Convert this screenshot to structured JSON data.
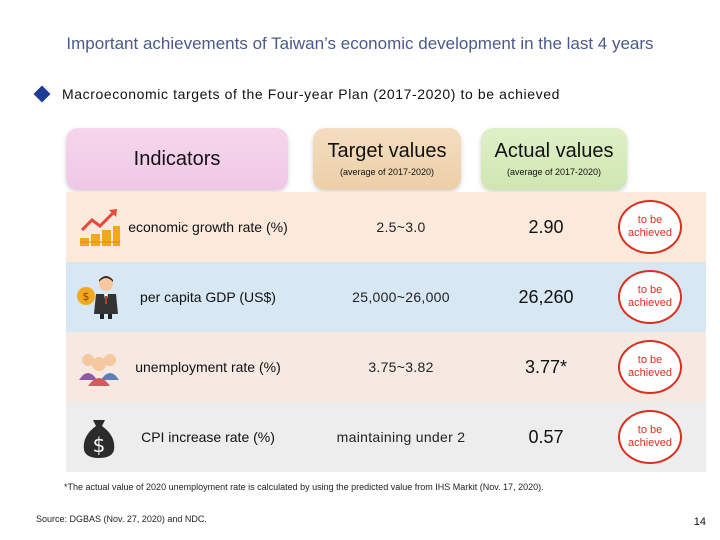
{
  "title": "Important achievements of Taiwan’s economic development in the last 4 years",
  "subtitle": "Macroeconomic targets of the Four-year Plan (2017-2020) to be achieved",
  "headers": {
    "indicators": "Indicators",
    "target": "Target values",
    "target_sub": "(average of 2017-2020)",
    "actual": "Actual values",
    "actual_sub": "(average of 2017-2020)"
  },
  "rows": [
    {
      "indicator": "economic growth rate (%)",
      "target": "2.5~3.0",
      "actual": "2.90",
      "status": "to be achieved",
      "icon": "growth-chart-coins-icon"
    },
    {
      "indicator": "per capita GDP (US$)",
      "target": "25,000~26,000",
      "actual": "26,260",
      "status": "to be achieved",
      "icon": "businessman-coin-icon"
    },
    {
      "indicator": "unemployment rate (%)",
      "target": "3.75~3.82",
      "actual": "3.77*",
      "status": "to be achieved",
      "icon": "people-group-icon"
    },
    {
      "indicator": "CPI increase rate (%)",
      "target": "maintaining under 2",
      "actual": "0.57",
      "status": "to be achieved",
      "icon": "money-bag-icon"
    }
  ],
  "footnote": "*The actual value of 2020 unemployment rate is calculated by using the predicted value from IHS Markit (Nov. 17, 2020).",
  "source": "Source: DGBAS (Nov. 27, 2020) and NDC.",
  "page_number": "14",
  "colors": {
    "title": "#4a5a8a",
    "badge_red": "#d9301f",
    "row_growth": "#fbe9dc",
    "row_gdp": "#d7e7f4",
    "row_unemployment": "#f5e9e2",
    "row_cpi": "#ededed"
  }
}
